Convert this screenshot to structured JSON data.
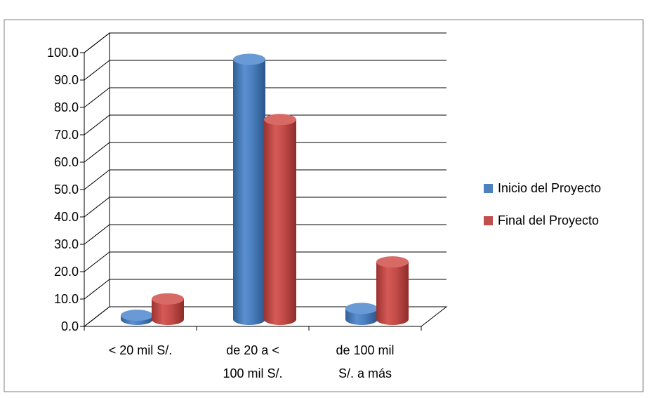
{
  "chart_data": {
    "type": "bar",
    "title": "",
    "xlabel": "",
    "ylabel": "",
    "ylim": [
      0,
      100
    ],
    "yticks": [
      "0.0",
      "10.0",
      "20.0",
      "30.0",
      "40.0",
      "50.0",
      "60.0",
      "70.0",
      "80.0",
      "90.0",
      "100.0"
    ],
    "categories": [
      [
        "< 20 mil S/."
      ],
      [
        "de 20 a <",
        "100 mil S/."
      ],
      [
        "de 100 mil",
        "S/. a más"
      ]
    ],
    "series": [
      {
        "name": "Inicio del Proyecto",
        "color": "#4f81bd",
        "values": [
          1.5,
          95.0,
          4.0
        ]
      },
      {
        "name": "Final del Proyecto",
        "color": "#c0504d",
        "values": [
          7.5,
          73.0,
          21.0
        ]
      }
    ],
    "grid": true,
    "legend_position": "right",
    "style": "3d-cylinder"
  }
}
